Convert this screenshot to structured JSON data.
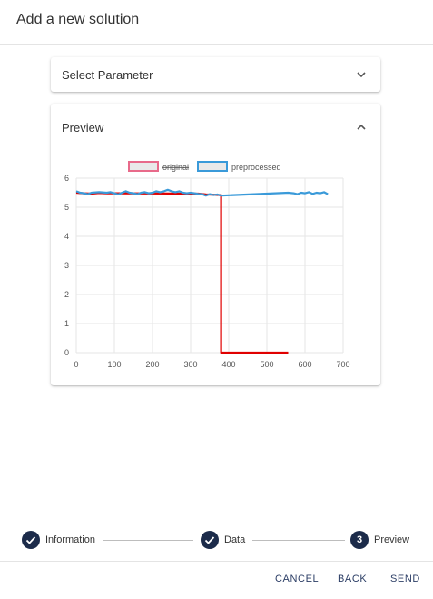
{
  "dialog": {
    "title": "Add a new solution"
  },
  "select_panel": {
    "label": "Select Parameter",
    "expanded": false
  },
  "preview_panel": {
    "label": "Preview",
    "expanded": true
  },
  "chart_data": {
    "type": "line",
    "legend": {
      "placement": "top",
      "entries": [
        "original",
        "preprocessed"
      ]
    },
    "xlim": [
      0,
      700
    ],
    "ylim": [
      0,
      6
    ],
    "x_ticks": [
      0,
      100,
      200,
      300,
      400,
      500,
      600,
      700
    ],
    "y_ticks": [
      0,
      1,
      2,
      3,
      4,
      5,
      6
    ],
    "grid": true,
    "series": [
      {
        "name": "original",
        "color": "#e00000",
        "hidden": true,
        "points": [
          [
            0,
            5.5
          ],
          [
            20,
            5.48
          ],
          [
            40,
            5.47
          ],
          [
            60,
            5.49
          ],
          [
            80,
            5.48
          ],
          [
            320,
            5.47
          ],
          [
            340,
            5.44
          ],
          [
            380,
            5.42
          ],
          [
            380,
            0
          ],
          [
            556,
            0
          ]
        ]
      },
      {
        "name": "preprocessed",
        "color": "#3a9ad9",
        "points": [
          [
            0,
            5.55
          ],
          [
            10,
            5.5
          ],
          [
            20,
            5.48
          ],
          [
            30,
            5.45
          ],
          [
            40,
            5.5
          ],
          [
            60,
            5.52
          ],
          [
            80,
            5.5
          ],
          [
            90,
            5.52
          ],
          [
            100,
            5.48
          ],
          [
            110,
            5.44
          ],
          [
            120,
            5.5
          ],
          [
            130,
            5.55
          ],
          [
            140,
            5.5
          ],
          [
            150,
            5.48
          ],
          [
            160,
            5.45
          ],
          [
            170,
            5.5
          ],
          [
            180,
            5.52
          ],
          [
            190,
            5.48
          ],
          [
            200,
            5.5
          ],
          [
            210,
            5.55
          ],
          [
            220,
            5.52
          ],
          [
            230,
            5.55
          ],
          [
            240,
            5.6
          ],
          [
            250,
            5.55
          ],
          [
            260,
            5.52
          ],
          [
            270,
            5.55
          ],
          [
            280,
            5.5
          ],
          [
            290,
            5.48
          ],
          [
            300,
            5.5
          ],
          [
            310,
            5.48
          ],
          [
            320,
            5.46
          ],
          [
            330,
            5.45
          ],
          [
            340,
            5.4
          ],
          [
            350,
            5.45
          ],
          [
            360,
            5.42
          ],
          [
            370,
            5.44
          ],
          [
            380,
            5.4
          ],
          [
            556,
            5.5
          ],
          [
            570,
            5.48
          ],
          [
            580,
            5.45
          ],
          [
            590,
            5.5
          ],
          [
            600,
            5.48
          ],
          [
            610,
            5.52
          ],
          [
            620,
            5.46
          ],
          [
            630,
            5.5
          ],
          [
            640,
            5.48
          ],
          [
            650,
            5.52
          ],
          [
            660,
            5.45
          ]
        ]
      }
    ]
  },
  "stepper": {
    "steps": [
      {
        "label": "Information",
        "state": "done",
        "number": ""
      },
      {
        "label": "Data",
        "state": "done",
        "number": ""
      },
      {
        "label": "Preview",
        "state": "active",
        "number": "3"
      }
    ]
  },
  "footer": {
    "cancel_label": "CANCEL",
    "back_label": "BACK",
    "send_label": "SEND"
  },
  "colors": {
    "accent": "#1c2b4a",
    "button_text": "#2c3e66"
  }
}
